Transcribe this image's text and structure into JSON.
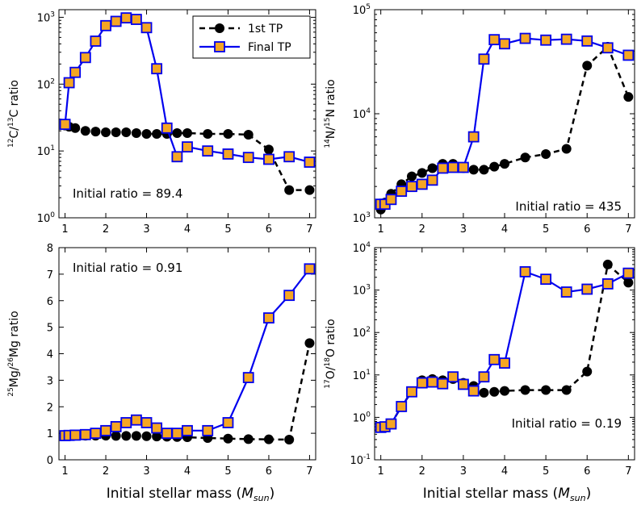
{
  "x_axis_label": {
    "text": "Initial stellar mass (",
    "symbol": "M",
    "sub": "sun",
    "close": ")"
  },
  "colors": {
    "first_tp": "#000000",
    "final_tp_line": "#0000ee",
    "final_tp_fill": "#f5a623"
  },
  "chart_data": [
    {
      "type": "line",
      "ylabel": {
        "pre": "12",
        "a": "C/",
        "mid": "13",
        "b": "C ratio"
      },
      "yscale": "log",
      "ylim": [
        1,
        1300
      ],
      "xlim": [
        0.85,
        7.15
      ],
      "xticks": [
        1,
        2,
        3,
        4,
        5,
        6,
        7
      ],
      "yticks": [
        {
          "base": "10",
          "exp": "0"
        },
        {
          "base": "10",
          "exp": "1"
        },
        {
          "base": "10",
          "exp": "2"
        },
        {
          "base": "10",
          "exp": "3"
        }
      ],
      "annotation": "Initial ratio = 89.4",
      "legend": {
        "placement": "top-right",
        "entries": [
          "1st TP",
          "Final TP"
        ]
      },
      "series": [
        {
          "name": "1st TP",
          "x": [
            1,
            1.1,
            1.25,
            1.5,
            1.75,
            2,
            2.25,
            2.5,
            2.75,
            3,
            3.25,
            3.5,
            3.75,
            4,
            4.5,
            5,
            5.5,
            6,
            6.5,
            7
          ],
          "y": [
            24,
            23,
            22,
            20,
            19.5,
            19,
            19,
            19,
            18.5,
            18,
            18,
            18,
            18.5,
            18.5,
            18,
            18,
            17.5,
            10.5,
            2.6,
            2.6
          ]
        },
        {
          "name": "Final TP",
          "x": [
            1,
            1.1,
            1.25,
            1.5,
            1.75,
            2,
            2.25,
            2.5,
            2.75,
            3,
            3.25,
            3.5,
            3.75,
            4,
            4.5,
            5,
            5.5,
            6,
            6.5,
            7
          ],
          "y": [
            25,
            105,
            150,
            250,
            440,
            750,
            870,
            980,
            930,
            700,
            170,
            22,
            8.2,
            11.5,
            10,
            9,
            8,
            7.5,
            8.2,
            6.8
          ]
        }
      ]
    },
    {
      "type": "line",
      "ylabel": {
        "pre": "14",
        "a": "N/",
        "mid": "15",
        "b": "N ratio"
      },
      "yscale": "log",
      "ylim": [
        1000,
        100000
      ],
      "xlim": [
        0.85,
        7.15
      ],
      "xticks": [
        1,
        2,
        3,
        4,
        5,
        6,
        7
      ],
      "yticks": [
        {
          "base": "10",
          "exp": "3"
        },
        {
          "base": "10",
          "exp": "4"
        },
        {
          "base": "10",
          "exp": "5"
        }
      ],
      "annotation": "Initial ratio = 435",
      "series": [
        {
          "name": "1st TP",
          "x": [
            1,
            1.1,
            1.25,
            1.5,
            1.75,
            2,
            2.25,
            2.5,
            2.75,
            3,
            3.25,
            3.5,
            3.75,
            4,
            4.5,
            5,
            5.5,
            6,
            6.5,
            7
          ],
          "y": [
            1200,
            1400,
            1700,
            2100,
            2500,
            2700,
            3000,
            3300,
            3300,
            3000,
            2900,
            2900,
            3100,
            3300,
            3800,
            4100,
            4600,
            29000,
            44000,
            14500
          ]
        },
        {
          "name": "Final TP",
          "x": [
            1,
            1.1,
            1.25,
            1.5,
            1.75,
            2,
            2.25,
            2.5,
            2.75,
            3,
            3.25,
            3.5,
            3.75,
            4,
            4.5,
            5,
            5.5,
            6,
            6.5,
            7
          ],
          "y": [
            1350,
            1350,
            1500,
            1800,
            2000,
            2100,
            2300,
            3000,
            3050,
            3050,
            6000,
            33500,
            51500,
            47000,
            53000,
            51000,
            52000,
            50000,
            43000,
            36500
          ]
        }
      ]
    },
    {
      "type": "line",
      "ylabel": {
        "pre": "25",
        "a": "Mg/",
        "mid": "26",
        "b": "Mg ratio"
      },
      "yscale": "linear",
      "ylim": [
        0,
        8
      ],
      "xlim": [
        0.85,
        7.15
      ],
      "xticks": [
        1,
        2,
        3,
        4,
        5,
        6,
        7
      ],
      "ytick_values": [
        0,
        1,
        2,
        3,
        4,
        5,
        6,
        7,
        8
      ],
      "annotation": "Initial ratio = 0.91",
      "series": [
        {
          "name": "1st TP",
          "x": [
            1,
            1.1,
            1.25,
            1.5,
            1.75,
            2,
            2.25,
            2.5,
            2.75,
            3,
            3.25,
            3.5,
            3.75,
            4,
            4.5,
            5,
            5.5,
            6,
            6.5,
            7
          ],
          "y": [
            0.91,
            0.91,
            0.91,
            0.91,
            0.91,
            0.91,
            0.9,
            0.9,
            0.9,
            0.89,
            0.88,
            0.87,
            0.86,
            0.85,
            0.82,
            0.8,
            0.78,
            0.77,
            0.76,
            4.4
          ]
        },
        {
          "name": "Final TP",
          "x": [
            1,
            1.1,
            1.25,
            1.5,
            1.75,
            2,
            2.25,
            2.5,
            2.75,
            3,
            3.25,
            3.5,
            3.75,
            4,
            4.5,
            5,
            5.5,
            6,
            6.5,
            7
          ],
          "y": [
            0.91,
            0.92,
            0.93,
            0.95,
            1.0,
            1.1,
            1.25,
            1.4,
            1.5,
            1.4,
            1.2,
            1.0,
            1.0,
            1.1,
            1.1,
            1.4,
            3.1,
            5.35,
            6.2,
            7.2
          ]
        }
      ]
    },
    {
      "type": "line",
      "ylabel": {
        "pre": "17",
        "a": "O/",
        "mid": "18",
        "b": "O ratio"
      },
      "yscale": "log",
      "ylim": [
        0.1,
        10000
      ],
      "xlim": [
        0.85,
        7.15
      ],
      "xticks": [
        1,
        2,
        3,
        4,
        5,
        6,
        7
      ],
      "yticks": [
        {
          "base": "10",
          "exp": "-1"
        },
        {
          "base": "10",
          "exp": "0"
        },
        {
          "base": "10",
          "exp": "1"
        },
        {
          "base": "10",
          "exp": "2"
        },
        {
          "base": "10",
          "exp": "3"
        },
        {
          "base": "10",
          "exp": "4"
        }
      ],
      "annotation": "Initial ratio = 0.19",
      "series": [
        {
          "name": "1st TP",
          "x": [
            1,
            1.1,
            1.25,
            1.5,
            1.75,
            2,
            2.25,
            2.5,
            2.75,
            3,
            3.25,
            3.5,
            3.75,
            4,
            4.5,
            5,
            5.5,
            6,
            6.5,
            7
          ],
          "y": [
            0.6,
            0.6,
            0.7,
            1.8,
            4.0,
            7.5,
            8.0,
            7.5,
            8.0,
            6.5,
            5.5,
            3.8,
            4.0,
            4.2,
            4.4,
            4.4,
            4.4,
            12,
            4000,
            1500
          ]
        },
        {
          "name": "Final TP",
          "x": [
            1,
            1.1,
            1.25,
            1.5,
            1.75,
            2,
            2.25,
            2.5,
            2.75,
            3,
            3.25,
            3.5,
            3.75,
            4,
            4.5,
            5,
            5.5,
            6,
            6.5,
            7
          ],
          "y": [
            0.58,
            0.6,
            0.7,
            1.8,
            4.0,
            6.5,
            6.8,
            6.2,
            9.0,
            6.0,
            4.2,
            9.0,
            23,
            19,
            2700,
            1800,
            900,
            1050,
            1400,
            2500
          ]
        }
      ]
    }
  ]
}
